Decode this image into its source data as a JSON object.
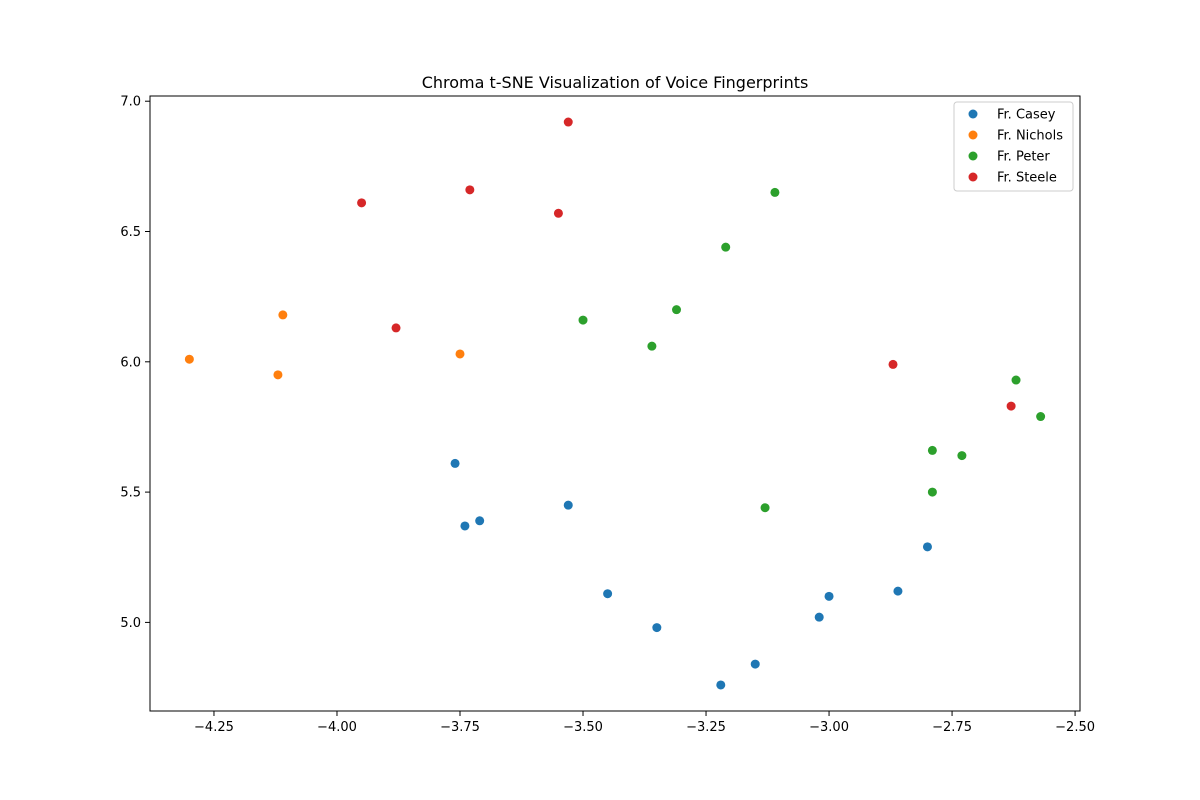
{
  "chart_data": {
    "type": "scatter",
    "title": "Chroma t-SNE Visualization of Voice Fingerprints",
    "xlabel": "",
    "ylabel": "",
    "xlim": [
      -4.38,
      -2.49
    ],
    "ylim": [
      4.66,
      7.02
    ],
    "x_ticks": [
      -4.25,
      -4.0,
      -3.75,
      -3.5,
      -3.25,
      -3.0,
      -2.75,
      -2.5
    ],
    "x_tick_labels": [
      "−4.25",
      "−4.00",
      "−3.75",
      "−3.50",
      "−3.25",
      "−3.00",
      "−2.75",
      "−2.50"
    ],
    "y_ticks": [
      5.0,
      5.5,
      6.0,
      6.5,
      7.0
    ],
    "y_tick_labels": [
      "5.0",
      "5.5",
      "6.0",
      "6.5",
      "7.0"
    ],
    "grid": false,
    "legend_position": "top-right",
    "series": [
      {
        "name": "Fr. Casey",
        "color": "#1f77b4",
        "points": [
          [
            -3.76,
            5.61
          ],
          [
            -3.74,
            5.37
          ],
          [
            -3.71,
            5.39
          ],
          [
            -3.53,
            5.45
          ],
          [
            -3.45,
            5.11
          ],
          [
            -3.35,
            4.98
          ],
          [
            -3.22,
            4.76
          ],
          [
            -3.15,
            4.84
          ],
          [
            -3.02,
            5.02
          ],
          [
            -3.0,
            5.1
          ],
          [
            -2.86,
            5.12
          ],
          [
            -2.8,
            5.29
          ]
        ]
      },
      {
        "name": "Fr. Nichols",
        "color": "#ff7f0e",
        "points": [
          [
            -4.3,
            6.01
          ],
          [
            -4.12,
            5.95
          ],
          [
            -4.11,
            6.18
          ],
          [
            -3.75,
            6.03
          ]
        ]
      },
      {
        "name": "Fr. Peter",
        "color": "#2ca02c",
        "points": [
          [
            -3.5,
            6.16
          ],
          [
            -3.36,
            6.06
          ],
          [
            -3.31,
            6.2
          ],
          [
            -3.21,
            6.44
          ],
          [
            -3.11,
            6.65
          ],
          [
            -3.13,
            5.44
          ],
          [
            -2.79,
            5.66
          ],
          [
            -2.79,
            5.5
          ],
          [
            -2.73,
            5.64
          ],
          [
            -2.62,
            5.93
          ],
          [
            -2.57,
            5.79
          ]
        ]
      },
      {
        "name": "Fr. Steele",
        "color": "#d62728",
        "points": [
          [
            -3.95,
            6.61
          ],
          [
            -3.88,
            6.13
          ],
          [
            -3.73,
            6.66
          ],
          [
            -3.55,
            6.57
          ],
          [
            -3.53,
            6.92
          ],
          [
            -2.87,
            5.99
          ],
          [
            -2.63,
            5.83
          ]
        ]
      }
    ]
  }
}
